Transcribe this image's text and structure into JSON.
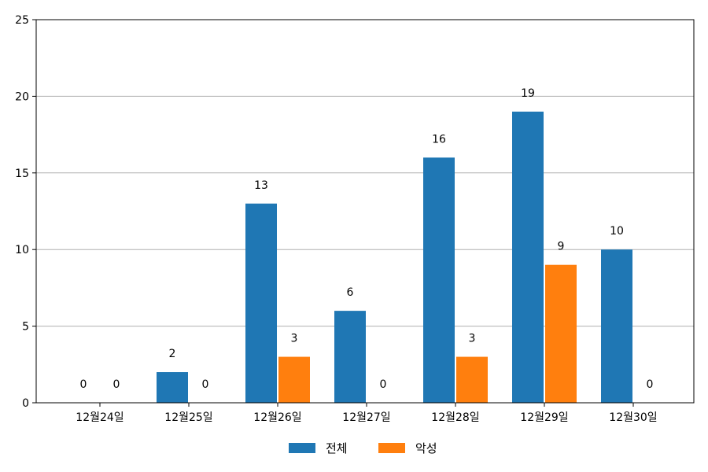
{
  "chart_data": {
    "type": "bar",
    "categories": [
      "12월24일",
      "12월25일",
      "12월26일",
      "12월27일",
      "12월28일",
      "12월29일",
      "12월30일"
    ],
    "series": [
      {
        "name": "전체",
        "color": "#1f77b4",
        "values": [
          0,
          2,
          13,
          6,
          16,
          19,
          10
        ]
      },
      {
        "name": "악성",
        "color": "#ff7f0e",
        "values": [
          0,
          0,
          3,
          0,
          3,
          9,
          0
        ]
      }
    ],
    "ylim": [
      0,
      25
    ],
    "yticks": [
      0,
      5,
      10,
      15,
      20,
      25
    ],
    "grid": "y",
    "legend": "bottom-center",
    "title": "",
    "xlabel": "",
    "ylabel": ""
  }
}
